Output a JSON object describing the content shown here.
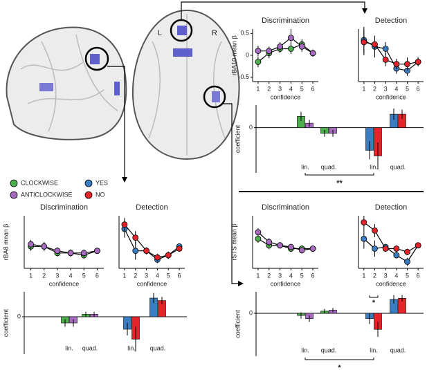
{
  "brain": {
    "left": "L",
    "right": "R"
  },
  "legend": [
    {
      "name": "CLOCKWISE",
      "color": "#4cae4c"
    },
    {
      "name": "ANTICLOCKWISE",
      "color": "#a66bbf"
    },
    {
      "name": "YES",
      "color": "#3a7dc2"
    },
    {
      "name": "NO",
      "color": "#e3242b"
    }
  ],
  "chart_data": [
    {
      "type": "line",
      "title": "Discrimination",
      "ylabel": "rBA10 mean β",
      "xlabel": "confidence",
      "x": [
        1,
        2,
        3,
        4,
        5,
        6
      ],
      "xlim": [
        0.5,
        6.5
      ],
      "xticks": [
        1,
        2,
        3,
        4,
        5,
        6
      ],
      "ylim": [
        -0.6,
        0.6
      ],
      "yticks": [
        -0.5,
        0,
        0.5
      ],
      "series": [
        {
          "color": "#4cae4c",
          "values": [
            -0.15,
            0.05,
            0.15,
            0.15,
            0.25,
            0.05
          ],
          "errors": [
            0.12,
            0.12,
            0.1,
            0.12,
            0.12,
            0.08
          ]
        },
        {
          "color": "#a66bbf",
          "values": [
            0.1,
            0.1,
            0.2,
            0.4,
            0.2,
            0.05
          ],
          "errors": [
            0.12,
            0.1,
            0.1,
            0.2,
            0.12,
            0.08
          ]
        }
      ]
    },
    {
      "type": "line",
      "title": "Detection",
      "xlabel": "confidence",
      "x": [
        1,
        2,
        3,
        4,
        5,
        6
      ],
      "xlim": [
        0.5,
        6.5
      ],
      "xticks": [
        1,
        2,
        3,
        4,
        5,
        6
      ],
      "ylim": [
        -0.6,
        0.6
      ],
      "series": [
        {
          "color": "#3a7dc2",
          "values": [
            0.35,
            0.2,
            0.15,
            -0.3,
            -0.35,
            -0.15
          ],
          "errors": [
            0.3,
            0.25,
            0.15,
            0.12,
            0.12,
            0.1
          ]
        },
        {
          "color": "#e3242b",
          "values": [
            0.3,
            0.25,
            -0.1,
            -0.2,
            -0.2,
            -0.15
          ],
          "errors": [
            0.3,
            0.2,
            0.15,
            0.12,
            0.15,
            0.1
          ]
        }
      ]
    },
    {
      "type": "bar",
      "ylabel": "coefficient",
      "categories": [
        "lin.",
        "quad.",
        "lin.",
        "quad."
      ],
      "ylim": [
        -0.4,
        0.2
      ],
      "yticks": [
        0
      ],
      "annotations": [
        "**"
      ],
      "series": [
        {
          "color": "#4cae4c",
          "values": [
            0.1,
            -0.05,
            null,
            null
          ],
          "errors": [
            0.04,
            0.03,
            null,
            null
          ]
        },
        {
          "color": "#a66bbf",
          "values": [
            0.04,
            -0.05,
            null,
            null
          ],
          "errors": [
            0.03,
            0.03,
            null,
            null
          ]
        },
        {
          "color": "#3a7dc2",
          "values": [
            null,
            null,
            -0.2,
            0.12
          ],
          "errors": [
            null,
            null,
            0.08,
            0.05
          ]
        },
        {
          "color": "#e3242b",
          "values": [
            null,
            null,
            -0.25,
            0.12
          ],
          "errors": [
            null,
            null,
            0.12,
            0.04
          ]
        }
      ]
    },
    {
      "type": "line",
      "title": "Discrimination",
      "ylabel": "rBA8 mean β",
      "xlabel": "confidence",
      "x": [
        1,
        2,
        3,
        4,
        5,
        6
      ],
      "xlim": [
        0.5,
        6.5
      ],
      "xticks": [
        1,
        2,
        3,
        4,
        5,
        6
      ],
      "ylim": [
        -0.4,
        0.8
      ],
      "series": [
        {
          "color": "#4cae4c",
          "values": [
            0.1,
            0.1,
            -0.05,
            -0.05,
            -0.1,
            0
          ],
          "errors": [
            0.1,
            0.1,
            0.08,
            0.08,
            0.08,
            0.05
          ]
        },
        {
          "color": "#a66bbf",
          "values": [
            0.15,
            0.1,
            0,
            -0.05,
            -0.05,
            0
          ],
          "errors": [
            0.1,
            0.1,
            0.08,
            0.08,
            0.08,
            0.05
          ]
        }
      ]
    },
    {
      "type": "line",
      "title": "Detection",
      "xlabel": "confidence",
      "x": [
        1,
        2,
        3,
        4,
        5,
        6
      ],
      "xlim": [
        0.5,
        6.5
      ],
      "xticks": [
        1,
        2,
        3,
        4,
        5,
        6
      ],
      "ylim": [
        -0.4,
        0.8
      ],
      "series": [
        {
          "color": "#3a7dc2",
          "values": [
            0.5,
            0,
            0,
            -0.2,
            -0.1,
            0.1
          ],
          "errors": [
            0.2,
            0.2,
            0.08,
            0.08,
            0.08,
            0.05
          ]
        },
        {
          "color": "#e3242b",
          "values": [
            0.6,
            0.3,
            0,
            -0.15,
            -0.1,
            0.05
          ],
          "errors": [
            0.15,
            0.15,
            0.08,
            0.08,
            0.08,
            0.05
          ]
        }
      ]
    },
    {
      "type": "bar",
      "ylabel": "coefficient",
      "categories": [
        "lin.",
        "quad.",
        "lin.",
        "quad."
      ],
      "ylim": [
        -0.3,
        0.2
      ],
      "yticks": [
        0
      ],
      "annotations": [],
      "series": [
        {
          "color": "#4cae4c",
          "values": [
            -0.05,
            0.02,
            null,
            null
          ],
          "errors": [
            0.03,
            0.02,
            null,
            null
          ]
        },
        {
          "color": "#a66bbf",
          "values": [
            -0.05,
            0.02,
            null,
            null
          ],
          "errors": [
            0.03,
            0.02,
            null,
            null
          ]
        },
        {
          "color": "#3a7dc2",
          "values": [
            null,
            null,
            -0.1,
            0.15
          ],
          "errors": [
            null,
            null,
            0.05,
            0.04
          ]
        },
        {
          "color": "#e3242b",
          "values": [
            null,
            null,
            -0.18,
            0.13
          ],
          "errors": [
            null,
            null,
            0.1,
            0.03
          ]
        }
      ]
    },
    {
      "type": "line",
      "title": "Discrimination",
      "ylabel": "rSTS mean β",
      "xlabel": "confidence",
      "x": [
        1,
        2,
        3,
        4,
        5,
        6
      ],
      "xlim": [
        0.5,
        6.5
      ],
      "xticks": [
        1,
        2,
        3,
        4,
        5,
        6
      ],
      "ylim": [
        -0.6,
        1
      ],
      "series": [
        {
          "color": "#4cae4c",
          "values": [
            0.3,
            0.1,
            0.1,
            0,
            0,
            0
          ],
          "errors": [
            0.12,
            0.12,
            0.1,
            0.1,
            0.1,
            0.06
          ]
        },
        {
          "color": "#a66bbf",
          "values": [
            0.5,
            0.2,
            0.1,
            0.05,
            -0.05,
            0
          ],
          "errors": [
            0.12,
            0.12,
            0.1,
            0.1,
            0.1,
            0.06
          ]
        }
      ]
    },
    {
      "type": "line",
      "title": "Detection",
      "xlabel": "confidence",
      "x": [
        1,
        2,
        3,
        4,
        5,
        6
      ],
      "xlim": [
        0.5,
        6.5
      ],
      "xticks": [
        1,
        2,
        3,
        4,
        5,
        6
      ],
      "ylim": [
        -0.6,
        1
      ],
      "series": [
        {
          "color": "#3a7dc2",
          "values": [
            0.3,
            0,
            0.05,
            -0.2,
            -0.4,
            0.1
          ],
          "errors": [
            0.3,
            0.25,
            0.1,
            0.1,
            0.12,
            0.06
          ]
        },
        {
          "color": "#e3242b",
          "values": [
            0.8,
            0.55,
            0,
            0,
            -0.1,
            0.1
          ],
          "errors": [
            0.2,
            0.2,
            0.1,
            0.1,
            0.1,
            0.06
          ]
        }
      ]
    },
    {
      "type": "bar",
      "ylabel": "coefficient",
      "categories": [
        "lin.",
        "quad.",
        "lin.",
        "quad."
      ],
      "ylim": [
        -0.4,
        0.2
      ],
      "yticks": [
        0
      ],
      "annotations": [
        "*",
        "*"
      ],
      "series": [
        {
          "color": "#4cae4c",
          "values": [
            -0.02,
            0.02,
            null,
            null
          ],
          "errors": [
            0.03,
            0.02,
            null,
            null
          ]
        },
        {
          "color": "#a66bbf",
          "values": [
            -0.05,
            0.03,
            null,
            null
          ],
          "errors": [
            0.03,
            0.02,
            null,
            null
          ]
        },
        {
          "color": "#3a7dc2",
          "values": [
            null,
            null,
            -0.05,
            0.13
          ],
          "errors": [
            null,
            null,
            0.05,
            0.04
          ]
        },
        {
          "color": "#e3242b",
          "values": [
            null,
            null,
            -0.15,
            0.14
          ],
          "errors": [
            null,
            null,
            0.07,
            0.03
          ]
        }
      ]
    }
  ]
}
